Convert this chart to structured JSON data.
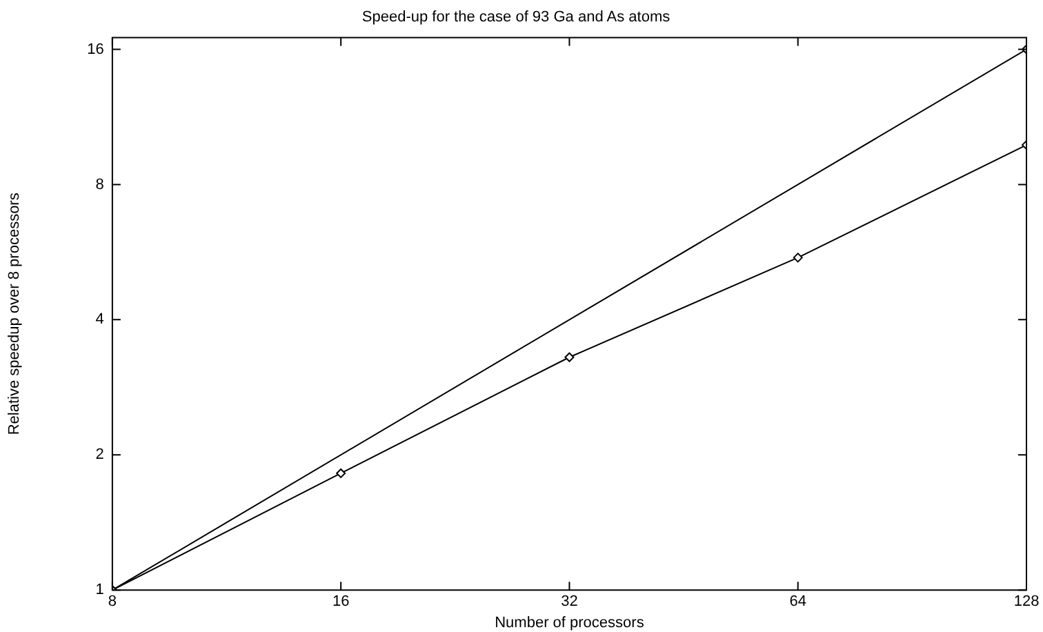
{
  "chart_data": {
    "type": "line",
    "title": "Speed-up for the case of 93 Ga and As atoms",
    "xlabel": "Number of processors",
    "ylabel": "Relative speedup over 8 processors",
    "log": "xy",
    "x": [
      8,
      16,
      32,
      64,
      128
    ],
    "xlim": [
      8,
      128
    ],
    "xticks": [
      8,
      16,
      32,
      64,
      128
    ],
    "ylim": [
      1,
      17
    ],
    "yticks": [
      1,
      2,
      4,
      8,
      16
    ],
    "grid": false,
    "legend": false,
    "marker": "diamond",
    "line_style": "solid",
    "series": [
      {
        "color": "#000000",
        "x": [
          8,
          128
        ],
        "values": [
          1,
          16
        ]
      },
      {
        "color": "#000000",
        "values": [
          1,
          1.82,
          3.3,
          5.5,
          9.8
        ]
      }
    ]
  }
}
